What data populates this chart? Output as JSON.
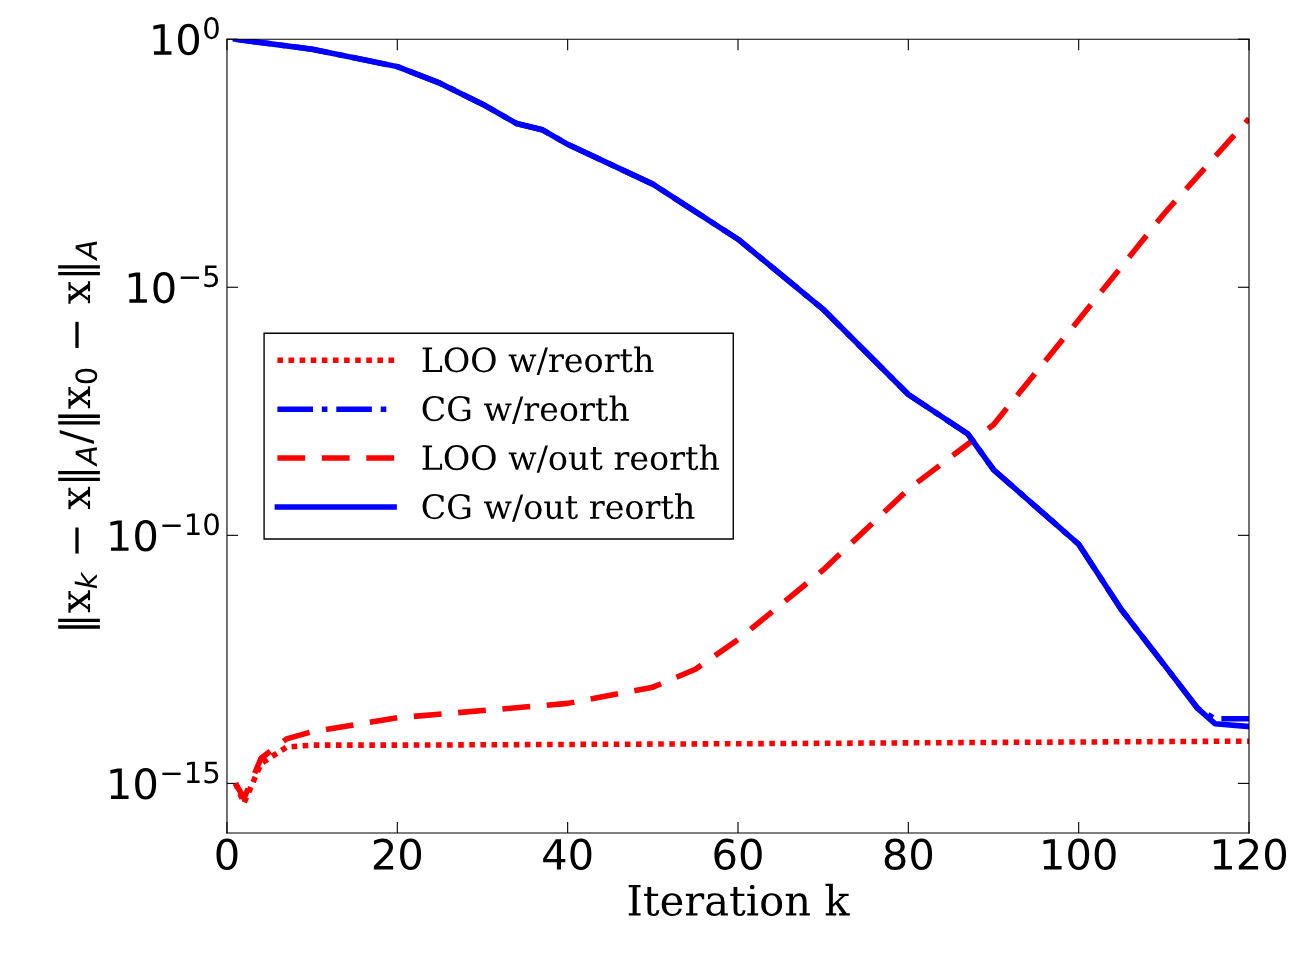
{
  "chart_data": {
    "type": "line",
    "xlabel": "Iteration k",
    "ylabel": "‖x$_{k}$ − x‖$_{A}$/‖x$_{0}$ − x‖$_{A}$",
    "log": "y",
    "xlim": [
      0,
      120
    ],
    "ylim": [
      1e-16,
      1
    ],
    "xticks": [
      0,
      20,
      40,
      60,
      80,
      100,
      120
    ],
    "yticks": [
      {
        "value": 1e-15,
        "label": "10$^{−15}$"
      },
      {
        "value": 1e-10,
        "label": "10$^{−10}$"
      },
      {
        "value": 1e-05,
        "label": "10$^{−5}$"
      },
      {
        "value": 1,
        "label": "10$^{0}$"
      }
    ],
    "grid": false,
    "legend": "left",
    "marker": "none",
    "series": [
      {
        "name": "LOO w/reorth",
        "color": "#ff0000",
        "line_style": "dotted",
        "x": [
          1,
          2,
          4,
          7,
          10,
          20,
          60,
          120
        ],
        "values": [
          1e-15,
          4e-16,
          2.5e-15,
          5.4e-15,
          5.9e-15,
          5.9e-15,
          6.3e-15,
          7.1e-15
        ]
      },
      {
        "name": "CG w/reorth",
        "color": "#0000ff",
        "line_style": "dashdot",
        "x": [
          1,
          10,
          20,
          25,
          30,
          34,
          37,
          40,
          50,
          60,
          70,
          80,
          87,
          90,
          100,
          105,
          110,
          114,
          116,
          120
        ],
        "values": [
          1,
          0.63,
          0.28,
          0.13,
          0.049,
          0.02,
          0.015,
          0.0076,
          0.0012,
          9.3e-05,
          3.6e-06,
          6.9e-08,
          1.1e-08,
          2.1e-09,
          6.6e-11,
          3.2e-12,
          2.5e-13,
          3.2e-14,
          2e-14,
          2e-14
        ]
      },
      {
        "name": "LOO w/out reorth",
        "color": "#ff0000",
        "line_style": "dashed",
        "x": [
          1,
          2,
          4,
          7,
          10,
          20,
          40,
          50,
          55,
          60,
          70,
          80,
          90,
          100,
          110,
          120
        ],
        "values": [
          1e-15,
          5e-16,
          3.2e-15,
          7.9e-15,
          1.1e-14,
          2.1e-14,
          4.1e-14,
          8.7e-14,
          2e-13,
          7.9e-13,
          2e-11,
          8.5e-10,
          1.7e-08,
          2.2e-06,
          0.0003,
          0.025
        ]
      },
      {
        "name": "CG w/out reorth",
        "color": "#0000ff",
        "line_style": "solid",
        "x": [
          1,
          10,
          20,
          25,
          30,
          34,
          37,
          40,
          50,
          60,
          70,
          80,
          87,
          90,
          100,
          105,
          110,
          114,
          116,
          120
        ],
        "values": [
          1,
          0.63,
          0.28,
          0.13,
          0.049,
          0.02,
          0.015,
          0.0076,
          0.0012,
          9.3e-05,
          3.6e-06,
          6.9e-08,
          1.1e-08,
          2.1e-09,
          6.6e-11,
          3.2e-12,
          2.5e-13,
          3.2e-14,
          1.6e-14,
          1.4e-14
        ]
      }
    ]
  }
}
